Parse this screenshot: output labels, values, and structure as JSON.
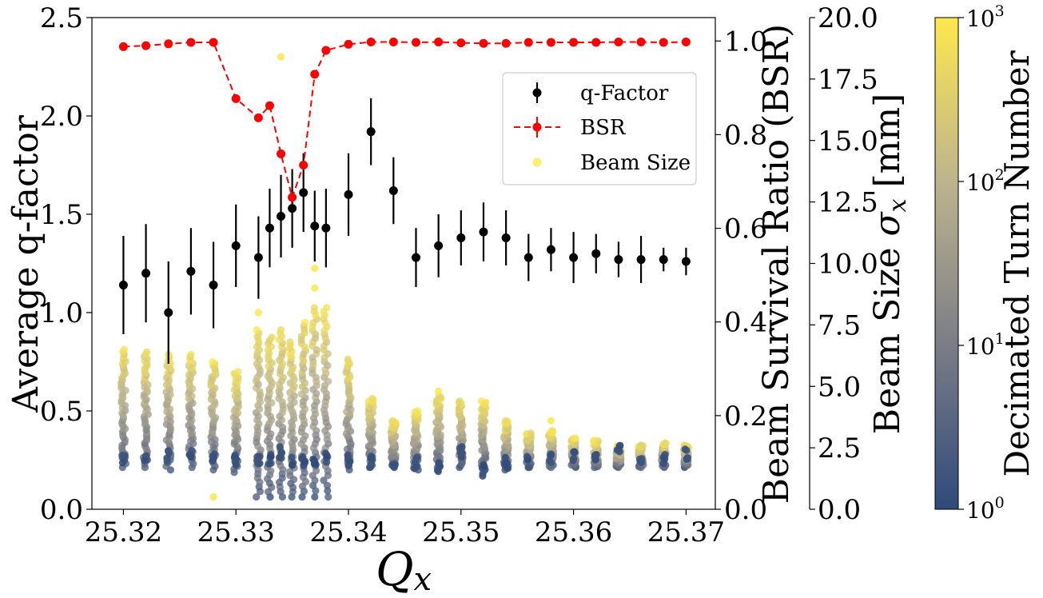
{
  "chart_data": {
    "type": "scatter",
    "xlabel_base": "Q",
    "xlabel_sub": "x",
    "xlim": [
      25.3172,
      25.3726
    ],
    "x_ticks": [
      "25.32",
      "25.33",
      "25.34",
      "25.35",
      "25.36",
      "25.37"
    ],
    "x_tick_values": [
      25.32,
      25.33,
      25.34,
      25.35,
      25.36,
      25.37
    ],
    "left_axis": {
      "label": "Average q-factor",
      "ylim": [
        0,
        2.5
      ],
      "ticks": [
        "0.0",
        "0.5",
        "1.0",
        "1.5",
        "2.0",
        "2.5"
      ],
      "tick_values": [
        0,
        0.5,
        1.0,
        1.5,
        2.0,
        2.5
      ]
    },
    "right_axis_bsr": {
      "label": "Beam Survival Ratio (BSR)",
      "color": "#ff0000",
      "ylim": [
        0,
        1.05
      ],
      "ticks": [
        "0.0",
        "0.2",
        "0.4",
        "0.6",
        "0.8",
        "1.0"
      ],
      "tick_values": [
        0,
        0.2,
        0.4,
        0.6,
        0.8,
        1.0
      ]
    },
    "right_axis_beam_size": {
      "label_prefix": "Beam Size ",
      "label_symbol": "σ",
      "label_sub": "x",
      "label_suffix": " [mm]",
      "ylim": [
        0,
        20
      ],
      "ticks": [
        "0.0",
        "2.5",
        "5.0",
        "7.5",
        "10.0",
        "12.5",
        "15.0",
        "17.5",
        "20.0"
      ],
      "tick_values": [
        0,
        2.5,
        5.0,
        7.5,
        10.0,
        12.5,
        15.0,
        17.5,
        20.0
      ]
    },
    "colorbar": {
      "label": "Decimated Turn Number",
      "scale": "log",
      "range": [
        1,
        1000
      ],
      "tick_exponents": [
        "0",
        "1",
        "2",
        "3"
      ],
      "tick_base": "10",
      "colors": [
        "#2f4a7a",
        "#7a7c86",
        "#bbb38e",
        "#fde84e"
      ]
    },
    "legend": {
      "placement": "upper-right",
      "entries": [
        "q-Factor",
        "BSR",
        "Beam Size"
      ]
    },
    "series": [
      {
        "name": "q-Factor",
        "color": "#000000",
        "points": [
          {
            "x": 25.32,
            "y": 1.14,
            "err": 0.25
          },
          {
            "x": 25.322,
            "y": 1.2,
            "err": 0.25
          },
          {
            "x": 25.324,
            "y": 1.0,
            "err": 0.26
          },
          {
            "x": 25.326,
            "y": 1.21,
            "err": 0.22
          },
          {
            "x": 25.328,
            "y": 1.14,
            "err": 0.22
          },
          {
            "x": 25.33,
            "y": 1.34,
            "err": 0.21
          },
          {
            "x": 25.332,
            "y": 1.28,
            "err": 0.21
          },
          {
            "x": 25.333,
            "y": 1.43,
            "err": 0.2
          },
          {
            "x": 25.334,
            "y": 1.49,
            "err": 0.21
          },
          {
            "x": 25.335,
            "y": 1.53,
            "err": 0.2
          },
          {
            "x": 25.336,
            "y": 1.61,
            "err": 0.2
          },
          {
            "x": 25.337,
            "y": 1.44,
            "err": 0.18
          },
          {
            "x": 25.338,
            "y": 1.43,
            "err": 0.2
          },
          {
            "x": 25.34,
            "y": 1.6,
            "err": 0.21
          },
          {
            "x": 25.342,
            "y": 1.92,
            "err": 0.17
          },
          {
            "x": 25.344,
            "y": 1.62,
            "err": 0.17
          },
          {
            "x": 25.346,
            "y": 1.28,
            "err": 0.15
          },
          {
            "x": 25.348,
            "y": 1.34,
            "err": 0.16
          },
          {
            "x": 25.35,
            "y": 1.38,
            "err": 0.14
          },
          {
            "x": 25.352,
            "y": 1.41,
            "err": 0.15
          },
          {
            "x": 25.354,
            "y": 1.38,
            "err": 0.14
          },
          {
            "x": 25.356,
            "y": 1.28,
            "err": 0.12
          },
          {
            "x": 25.358,
            "y": 1.32,
            "err": 0.11
          },
          {
            "x": 25.36,
            "y": 1.28,
            "err": 0.13
          },
          {
            "x": 25.362,
            "y": 1.3,
            "err": 0.1
          },
          {
            "x": 25.364,
            "y": 1.27,
            "err": 0.09
          },
          {
            "x": 25.366,
            "y": 1.27,
            "err": 0.12
          },
          {
            "x": 25.368,
            "y": 1.27,
            "err": 0.06
          },
          {
            "x": 25.37,
            "y": 1.26,
            "err": 0.07
          }
        ]
      },
      {
        "name": "BSR",
        "color": "#ff0000",
        "points": [
          {
            "x": 25.32,
            "y": 0.988
          },
          {
            "x": 25.322,
            "y": 0.99
          },
          {
            "x": 25.324,
            "y": 0.994
          },
          {
            "x": 25.326,
            "y": 0.997
          },
          {
            "x": 25.328,
            "y": 0.997
          },
          {
            "x": 25.33,
            "y": 0.877
          },
          {
            "x": 25.332,
            "y": 0.836
          },
          {
            "x": 25.333,
            "y": 0.862
          },
          {
            "x": 25.334,
            "y": 0.759
          },
          {
            "x": 25.335,
            "y": 0.666
          },
          {
            "x": 25.336,
            "y": 0.735
          },
          {
            "x": 25.337,
            "y": 0.929
          },
          {
            "x": 25.338,
            "y": 0.98
          },
          {
            "x": 25.34,
            "y": 0.993
          },
          {
            "x": 25.342,
            "y": 0.998
          },
          {
            "x": 25.344,
            "y": 0.998
          },
          {
            "x": 25.346,
            "y": 0.997
          },
          {
            "x": 25.348,
            "y": 0.998
          },
          {
            "x": 25.35,
            "y": 0.996
          },
          {
            "x": 25.352,
            "y": 0.995
          },
          {
            "x": 25.354,
            "y": 0.995
          },
          {
            "x": 25.356,
            "y": 0.997
          },
          {
            "x": 25.358,
            "y": 0.997
          },
          {
            "x": 25.36,
            "y": 0.997
          },
          {
            "x": 25.362,
            "y": 0.997
          },
          {
            "x": 25.364,
            "y": 0.998
          },
          {
            "x": 25.366,
            "y": 0.998
          },
          {
            "x": 25.368,
            "y": 0.997
          },
          {
            "x": 25.37,
            "y": 0.998
          }
        ]
      },
      {
        "name": "Beam Size",
        "units": "mm",
        "columns": [
          {
            "x": 25.32,
            "low": 1.7,
            "high": 6.5,
            "dark": 2.1
          },
          {
            "x": 25.322,
            "low": 1.7,
            "high": 6.4,
            "dark": 2.1
          },
          {
            "x": 25.324,
            "low": 1.6,
            "high": 6.3,
            "dark": 2.2
          },
          {
            "x": 25.326,
            "low": 1.7,
            "high": 6.3,
            "dark": 2.2
          },
          {
            "x": 25.328,
            "low": 1.6,
            "high": 6.0,
            "dark": 2.1
          },
          {
            "x": 25.33,
            "low": 1.5,
            "high": 5.6,
            "dark": 2.0
          },
          {
            "x": 25.332,
            "low": 0.5,
            "high": 7.3,
            "dark": 2.1
          },
          {
            "x": 25.333,
            "low": 0.5,
            "high": 7.0,
            "dark": 2.0
          },
          {
            "x": 25.334,
            "low": 0.5,
            "high": 7.3,
            "dark": 2.3
          },
          {
            "x": 25.335,
            "low": 0.5,
            "high": 6.8,
            "dark": 2.0
          },
          {
            "x": 25.336,
            "low": 0.5,
            "high": 7.6,
            "dark": 2.0
          },
          {
            "x": 25.337,
            "low": 0.5,
            "high": 8.2,
            "dark": 2.0
          },
          {
            "x": 25.338,
            "low": 0.5,
            "high": 8.2,
            "dark": 2.1
          },
          {
            "x": 25.34,
            "low": 1.6,
            "high": 6.1,
            "dark": 2.0
          },
          {
            "x": 25.342,
            "low": 1.7,
            "high": 4.5,
            "dark": 1.9
          },
          {
            "x": 25.344,
            "low": 1.7,
            "high": 3.6,
            "dark": 1.9
          },
          {
            "x": 25.346,
            "low": 1.6,
            "high": 4.0,
            "dark": 1.9
          },
          {
            "x": 25.348,
            "low": 1.7,
            "high": 4.6,
            "dark": 1.7
          },
          {
            "x": 25.35,
            "low": 1.7,
            "high": 4.4,
            "dark": 2.3
          },
          {
            "x": 25.352,
            "low": 1.7,
            "high": 4.4,
            "dark": 1.6
          },
          {
            "x": 25.354,
            "low": 1.6,
            "high": 3.6,
            "dark": 1.9
          },
          {
            "x": 25.356,
            "low": 1.7,
            "high": 3.1,
            "dark": 1.9
          },
          {
            "x": 25.358,
            "low": 1.7,
            "high": 3.2,
            "dark": 2.0
          },
          {
            "x": 25.36,
            "low": 1.7,
            "high": 2.9,
            "dark": 2.1
          },
          {
            "x": 25.362,
            "low": 1.7,
            "high": 2.8,
            "dark": 2.1
          },
          {
            "x": 25.364,
            "low": 1.7,
            "high": 2.6,
            "dark": 2.4
          },
          {
            "x": 25.366,
            "low": 1.7,
            "high": 2.6,
            "dark": 2.1
          },
          {
            "x": 25.368,
            "low": 1.7,
            "high": 2.7,
            "dark": 2.1
          },
          {
            "x": 25.37,
            "low": 1.7,
            "high": 2.6,
            "dark": 2.2
          }
        ],
        "outliers": [
          {
            "x": 25.334,
            "y": 18.4
          },
          {
            "x": 25.337,
            "y": 9.0
          },
          {
            "x": 25.337,
            "y": 9.8
          },
          {
            "x": 25.332,
            "y": 8.0
          },
          {
            "x": 25.348,
            "y": 4.8
          },
          {
            "x": 25.358,
            "y": 3.6
          },
          {
            "x": 25.328,
            "y": 0.5
          }
        ]
      }
    ]
  }
}
